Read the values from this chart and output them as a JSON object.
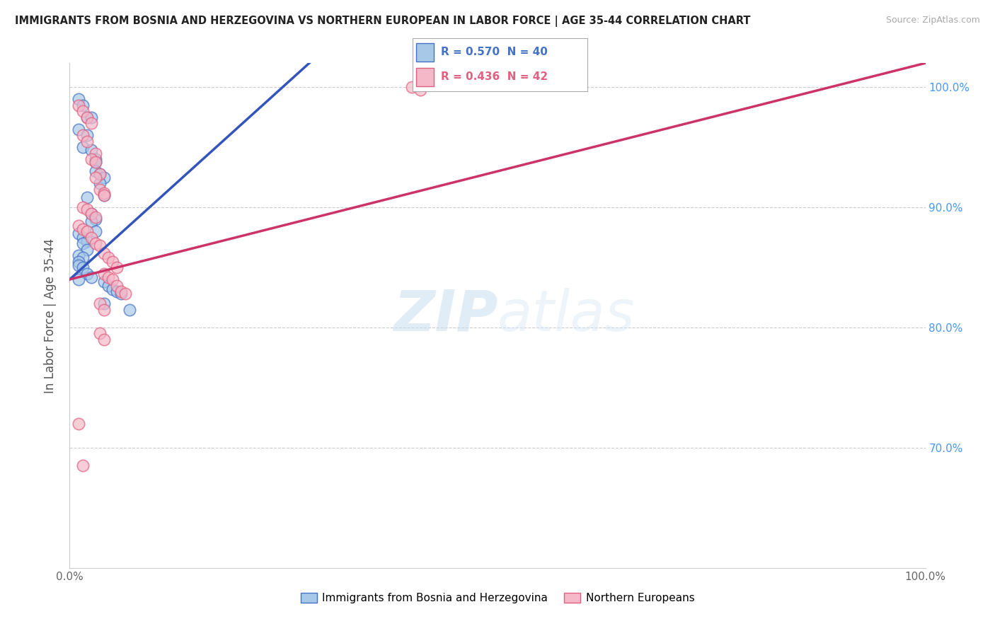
{
  "title": "IMMIGRANTS FROM BOSNIA AND HERZEGOVINA VS NORTHERN EUROPEAN IN LABOR FORCE | AGE 35-44 CORRELATION CHART",
  "source": "Source: ZipAtlas.com",
  "ylabel": "In Labor Force | Age 35-44",
  "xlim": [
    0.0,
    1.0
  ],
  "ylim": [
    0.6,
    1.02
  ],
  "legend_blue_r": "R = 0.570",
  "legend_blue_n": "N = 40",
  "legend_pink_r": "R = 0.436",
  "legend_pink_n": "N = 42",
  "blue_color": "#a8c8e8",
  "pink_color": "#f4b8c8",
  "blue_edge_color": "#4472c4",
  "pink_edge_color": "#e06080",
  "blue_line_color": "#3355bb",
  "pink_line_color": "#cc3366",
  "watermark_color": "#d0e8f8",
  "background_color": "#ffffff",
  "blue_scatter_x": [
    0.01,
    0.015,
    0.02,
    0.025,
    0.01,
    0.02,
    0.015,
    0.025,
    0.03,
    0.03,
    0.03,
    0.035,
    0.04,
    0.035,
    0.04,
    0.02,
    0.025,
    0.03,
    0.025,
    0.03,
    0.01,
    0.015,
    0.02,
    0.015,
    0.02,
    0.01,
    0.015,
    0.01,
    0.01,
    0.015,
    0.02,
    0.025,
    0.01,
    0.04,
    0.045,
    0.05,
    0.055,
    0.06,
    0.04,
    0.07
  ],
  "blue_scatter_y": [
    0.99,
    0.985,
    0.975,
    0.975,
    0.965,
    0.96,
    0.95,
    0.948,
    0.94,
    0.938,
    0.93,
    0.928,
    0.925,
    0.92,
    0.91,
    0.908,
    0.895,
    0.89,
    0.888,
    0.88,
    0.878,
    0.875,
    0.872,
    0.87,
    0.865,
    0.86,
    0.858,
    0.855,
    0.852,
    0.85,
    0.845,
    0.842,
    0.84,
    0.838,
    0.835,
    0.832,
    0.83,
    0.828,
    0.82,
    0.815
  ],
  "pink_scatter_x": [
    0.01,
    0.015,
    0.02,
    0.025,
    0.015,
    0.02,
    0.03,
    0.025,
    0.03,
    0.035,
    0.03,
    0.035,
    0.04,
    0.04,
    0.015,
    0.02,
    0.025,
    0.03,
    0.01,
    0.015,
    0.02,
    0.025,
    0.03,
    0.035,
    0.04,
    0.045,
    0.05,
    0.055,
    0.04,
    0.045,
    0.05,
    0.055,
    0.06,
    0.065,
    0.035,
    0.04,
    0.01,
    0.015,
    0.4,
    0.41,
    0.035,
    0.04
  ],
  "pink_scatter_y": [
    0.985,
    0.98,
    0.975,
    0.97,
    0.96,
    0.955,
    0.945,
    0.94,
    0.938,
    0.928,
    0.925,
    0.915,
    0.912,
    0.91,
    0.9,
    0.898,
    0.895,
    0.892,
    0.885,
    0.882,
    0.88,
    0.875,
    0.87,
    0.868,
    0.862,
    0.858,
    0.855,
    0.85,
    0.845,
    0.842,
    0.84,
    0.835,
    0.83,
    0.828,
    0.82,
    0.815,
    0.72,
    0.685,
    1.0,
    0.998,
    0.795,
    0.79
  ],
  "blue_line_x0": 0.0,
  "blue_line_y0": 0.84,
  "blue_line_x1": 0.28,
  "blue_line_y1": 1.02,
  "pink_line_x0": 0.0,
  "pink_line_y0": 0.84,
  "pink_line_x1": 1.0,
  "pink_line_y1": 1.02
}
